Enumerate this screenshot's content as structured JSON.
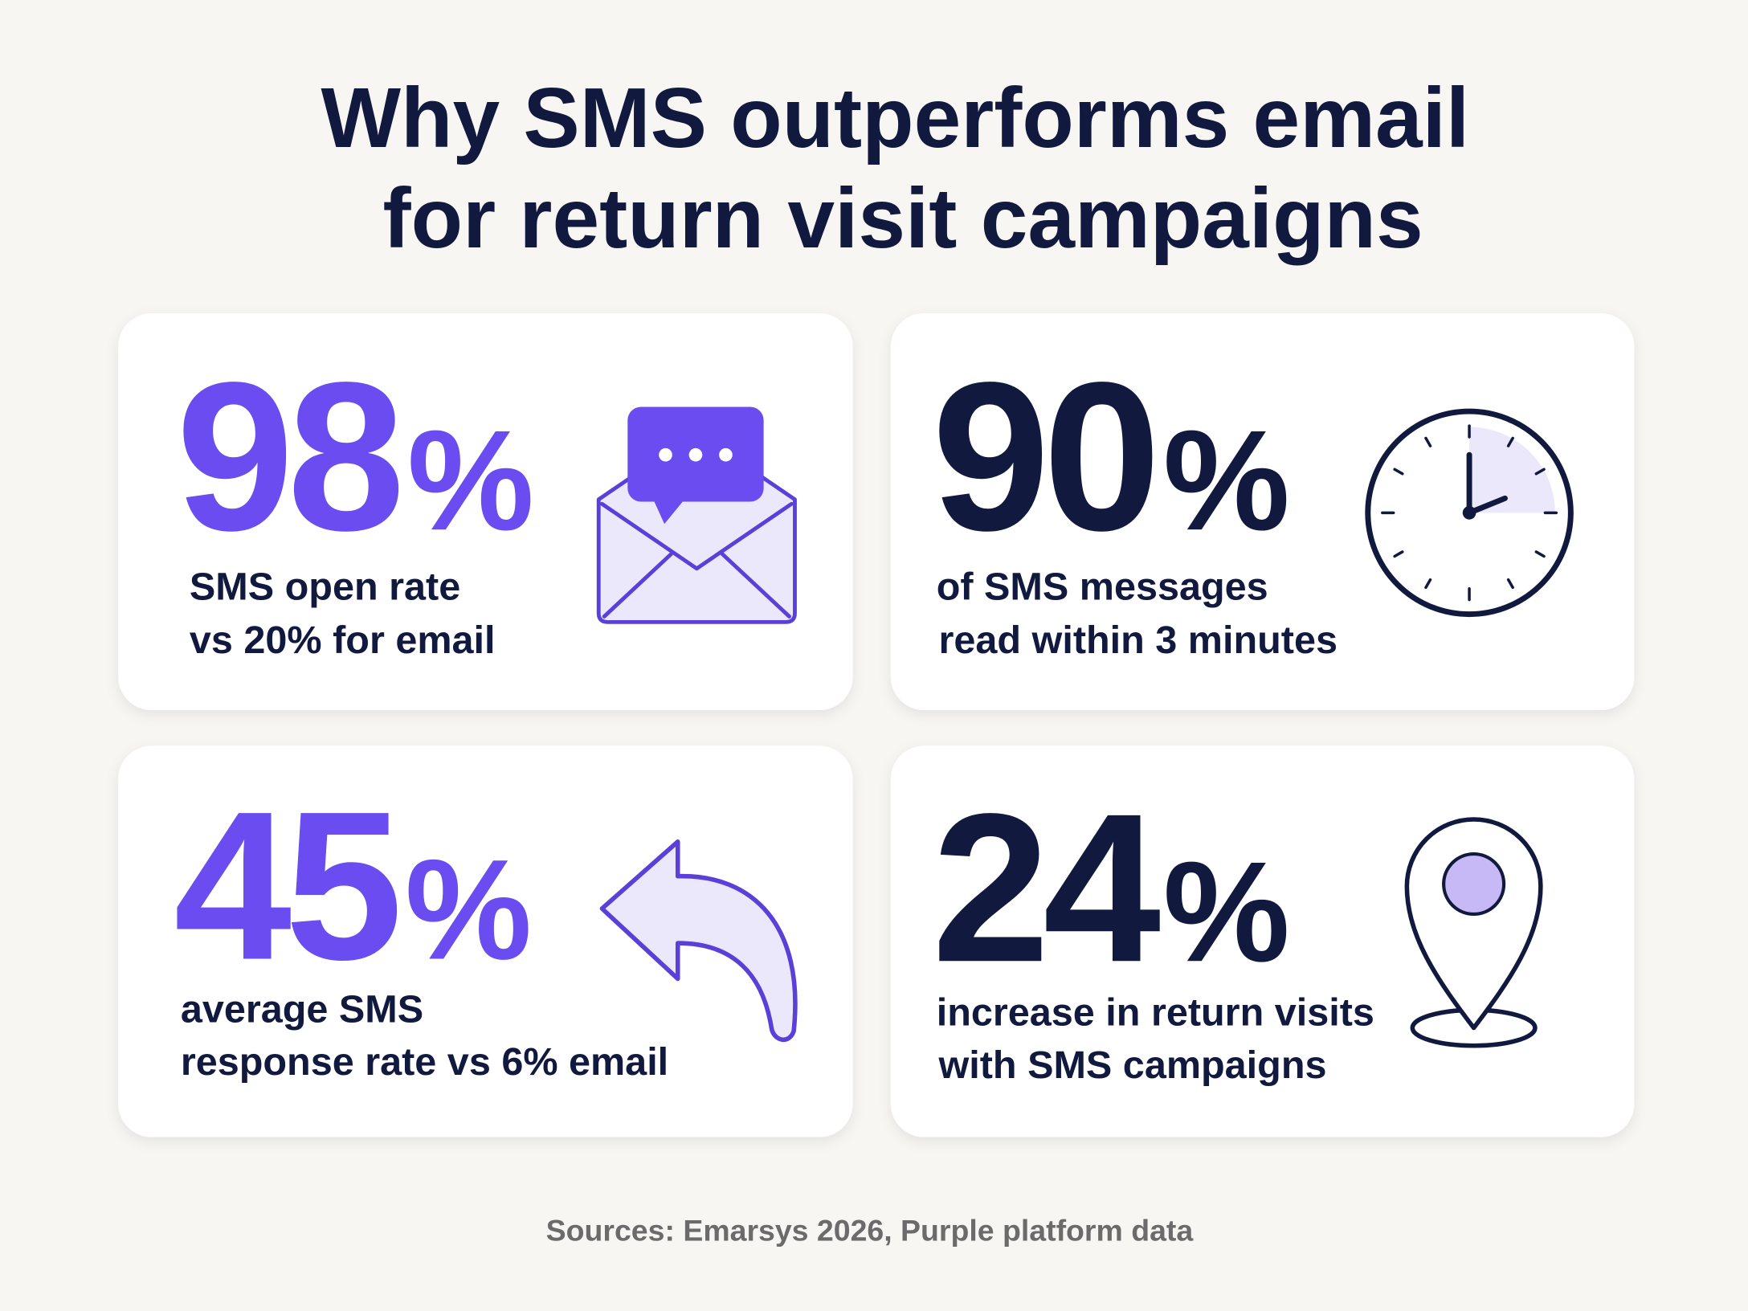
{
  "header": {
    "title_lines": [
      "Why SMS outperforms email",
      "for return visit campaigns"
    ]
  },
  "cards": [
    {
      "stat": {
        "number": "98",
        "unit": "%"
      },
      "stat_color": "#6a4cf0",
      "description_lines": [
        "SMS open rate",
        "vs 20% for email"
      ]
    },
    {
      "stat": {
        "number": "90",
        "unit": "%"
      },
      "stat_color": "#111a3e",
      "description_lines": [
        "of SMS messages",
        "read within 3 minutes"
      ]
    },
    {
      "stat": {
        "number": "45",
        "unit": "%"
      },
      "stat_color": "#6a4cf0",
      "description_lines": [
        "average SMS",
        "response rate vs 6% email"
      ]
    },
    {
      "stat": {
        "number": "24",
        "unit": "%"
      },
      "stat_color": "#111a3e",
      "description_lines": [
        "increase in return visits",
        "with SMS campaigns"
      ]
    }
  ],
  "footer": {
    "source": "Sources: Emarsys 2026, Purple platform data"
  }
}
